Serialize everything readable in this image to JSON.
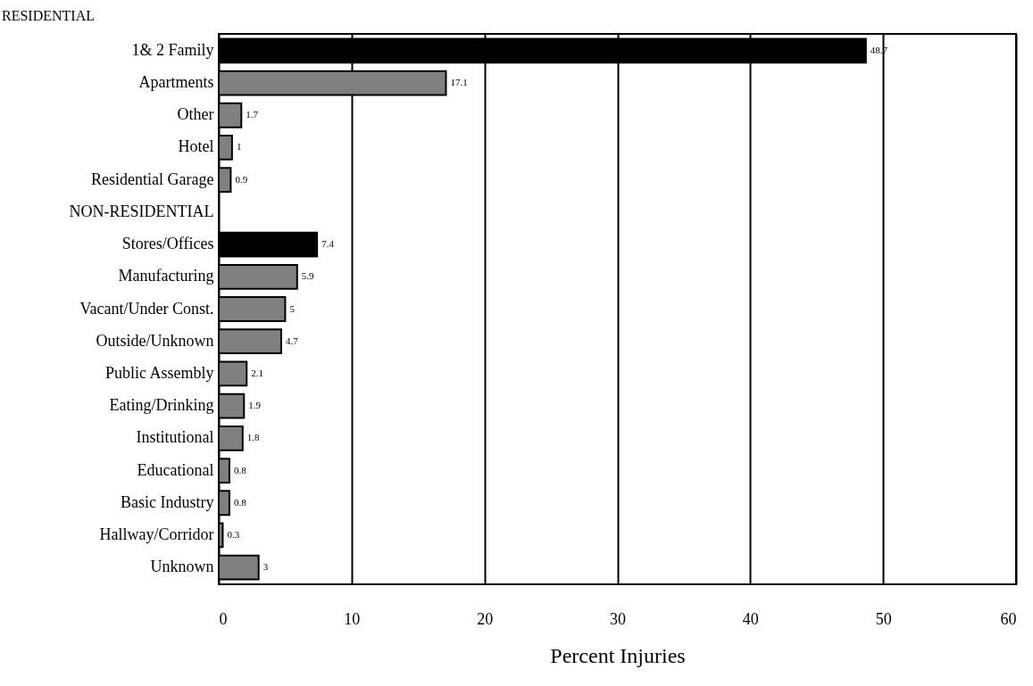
{
  "chart_data": {
    "type": "bar",
    "orientation": "horizontal",
    "xlabel": "Percent Injuries",
    "categories": [
      "1& 2 Family",
      "Apartments",
      "Other",
      "Hotel",
      "Residential Garage",
      "NON-RESIDENTIAL",
      "Stores/Offices",
      "Manufacturing",
      "Vacant/Under Const.",
      "Outside/Unknown",
      "Public Assembly",
      "Eating/Drinking",
      "Institutional",
      "Educational",
      "Basic Industry",
      "Hallway/Corridor",
      "Unknown"
    ],
    "values": [
      48.7,
      17.1,
      1.7,
      1,
      0.9,
      null,
      7.4,
      5.9,
      5,
      4.7,
      2.1,
      1.9,
      1.8,
      0.8,
      0.8,
      0.3,
      3
    ],
    "colors": [
      "#000000",
      "#808080",
      "#808080",
      "#808080",
      "#808080",
      "#808080",
      "#000000",
      "#808080",
      "#808080",
      "#808080",
      "#808080",
      "#808080",
      "#808080",
      "#808080",
      "#808080",
      "#808080",
      "#808080"
    ],
    "xlim": [
      0,
      60
    ],
    "xticks": [
      0,
      10,
      20,
      30,
      40,
      50,
      60
    ],
    "grid": "x",
    "data_labels": true,
    "annotations": [
      "RESIDENTIAL"
    ]
  }
}
